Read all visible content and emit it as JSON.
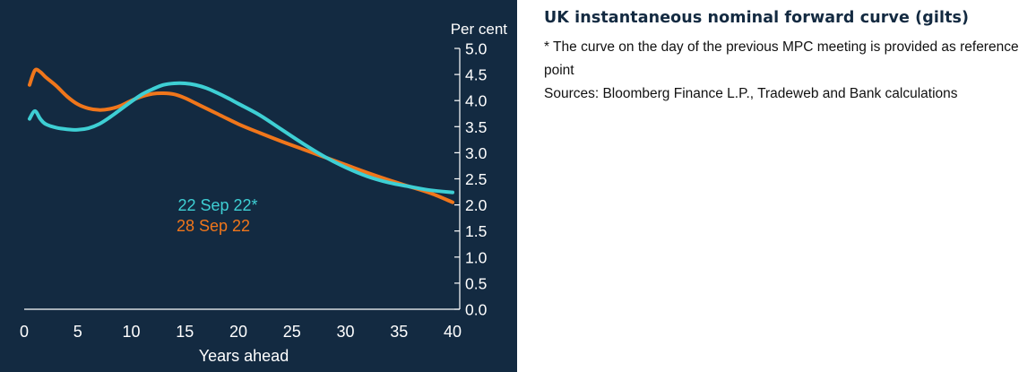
{
  "side_panel": {
    "title": "UK instantaneous nominal forward curve (gilts)",
    "footnote": "* The curve on the day of the previous MPC meeting is provided as reference point",
    "sources": "Sources: Bloomberg Finance L.P., Tradeweb and Bank calculations"
  },
  "chart_data": {
    "type": "line",
    "xlabel": "Years ahead",
    "ylabel": "Per cent",
    "xlim": [
      0,
      40
    ],
    "ylim": [
      0,
      5
    ],
    "x_ticks": [
      "0",
      "5",
      "10",
      "15",
      "20",
      "25",
      "30",
      "35",
      "40"
    ],
    "y_ticks": [
      "0.0",
      "0.5",
      "1.0",
      "1.5",
      "2.0",
      "2.5",
      "3.0",
      "3.5",
      "4.0",
      "4.5",
      "5.0"
    ],
    "y_axis_side": "right",
    "grid": false,
    "background": "#132a41",
    "series": [
      {
        "name": "22 Sep 22*",
        "color": "#3ecfd4",
        "x": [
          0.5,
          1,
          1.5,
          2,
          3,
          4,
          5,
          6,
          7,
          8,
          9,
          10,
          11,
          12,
          13,
          14,
          15,
          16,
          17,
          18,
          19,
          20,
          22,
          24,
          26,
          28,
          30,
          32,
          34,
          36,
          38,
          40
        ],
        "values": [
          3.65,
          3.8,
          3.65,
          3.55,
          3.48,
          3.45,
          3.44,
          3.47,
          3.55,
          3.68,
          3.83,
          3.98,
          4.12,
          4.22,
          4.3,
          4.33,
          4.33,
          4.3,
          4.24,
          4.15,
          4.05,
          3.94,
          3.72,
          3.45,
          3.18,
          2.93,
          2.72,
          2.55,
          2.43,
          2.35,
          2.28,
          2.24
        ]
      },
      {
        "name": "28 Sep 22",
        "color": "#f0761b",
        "x": [
          0.5,
          1,
          1.5,
          2,
          3,
          4,
          5,
          6,
          7,
          8,
          9,
          10,
          11,
          12,
          13,
          14,
          15,
          16,
          17,
          18,
          20,
          22,
          24,
          26,
          28,
          30,
          32,
          34,
          36,
          38,
          40
        ],
        "values": [
          4.3,
          4.58,
          4.55,
          4.45,
          4.28,
          4.08,
          3.93,
          3.85,
          3.82,
          3.84,
          3.9,
          4.0,
          4.08,
          4.13,
          4.14,
          4.12,
          4.05,
          3.95,
          3.85,
          3.75,
          3.55,
          3.38,
          3.22,
          3.07,
          2.92,
          2.77,
          2.62,
          2.48,
          2.35,
          2.22,
          2.05
        ]
      }
    ]
  }
}
